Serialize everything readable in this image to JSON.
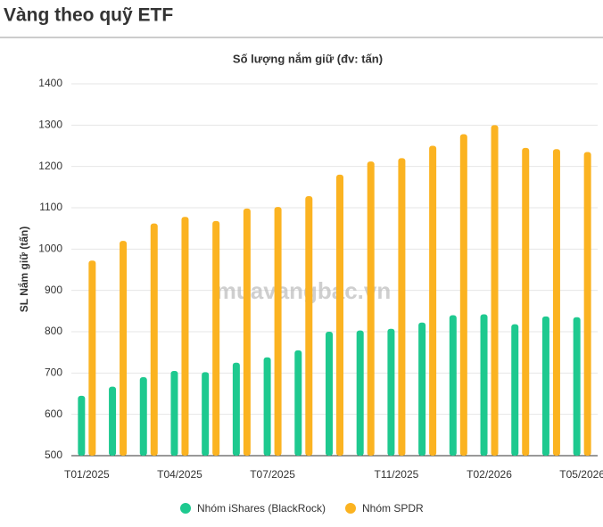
{
  "header": {
    "title": "Vàng theo quỹ ETF"
  },
  "chart_data": {
    "type": "bar",
    "title": "Số lượng nắm giữ (đv: tấn)",
    "y_label": "SL Nắm giữ (tấn)",
    "watermark": "muavangbac.vn",
    "categories": [
      "T01/2025",
      null,
      null,
      "T04/2025",
      null,
      null,
      "T07/2025",
      null,
      null,
      null,
      "T11/2025",
      null,
      null,
      "T02/2026",
      null,
      null,
      "T05/2026"
    ],
    "series": [
      {
        "name": "Nhóm iShares (BlackRock)",
        "color": "#1ec98f",
        "values": [
          645,
          667,
          690,
          705,
          702,
          725,
          738,
          755,
          800,
          803,
          807,
          822,
          840,
          842,
          818,
          837,
          835
        ]
      },
      {
        "name": "Nhóm SPDR",
        "color": "#fbb321",
        "values": [
          972,
          1020,
          1062,
          1078,
          1068,
          1098,
          1102,
          1128,
          1180,
          1212,
          1220,
          1250,
          1278,
          1300,
          1245,
          1242,
          1235
        ]
      }
    ],
    "ylim": [
      500,
      1400
    ],
    "yticks": [
      500,
      600,
      700,
      800,
      900,
      1000,
      1100,
      1200,
      1300,
      1400
    ],
    "grid": true
  }
}
